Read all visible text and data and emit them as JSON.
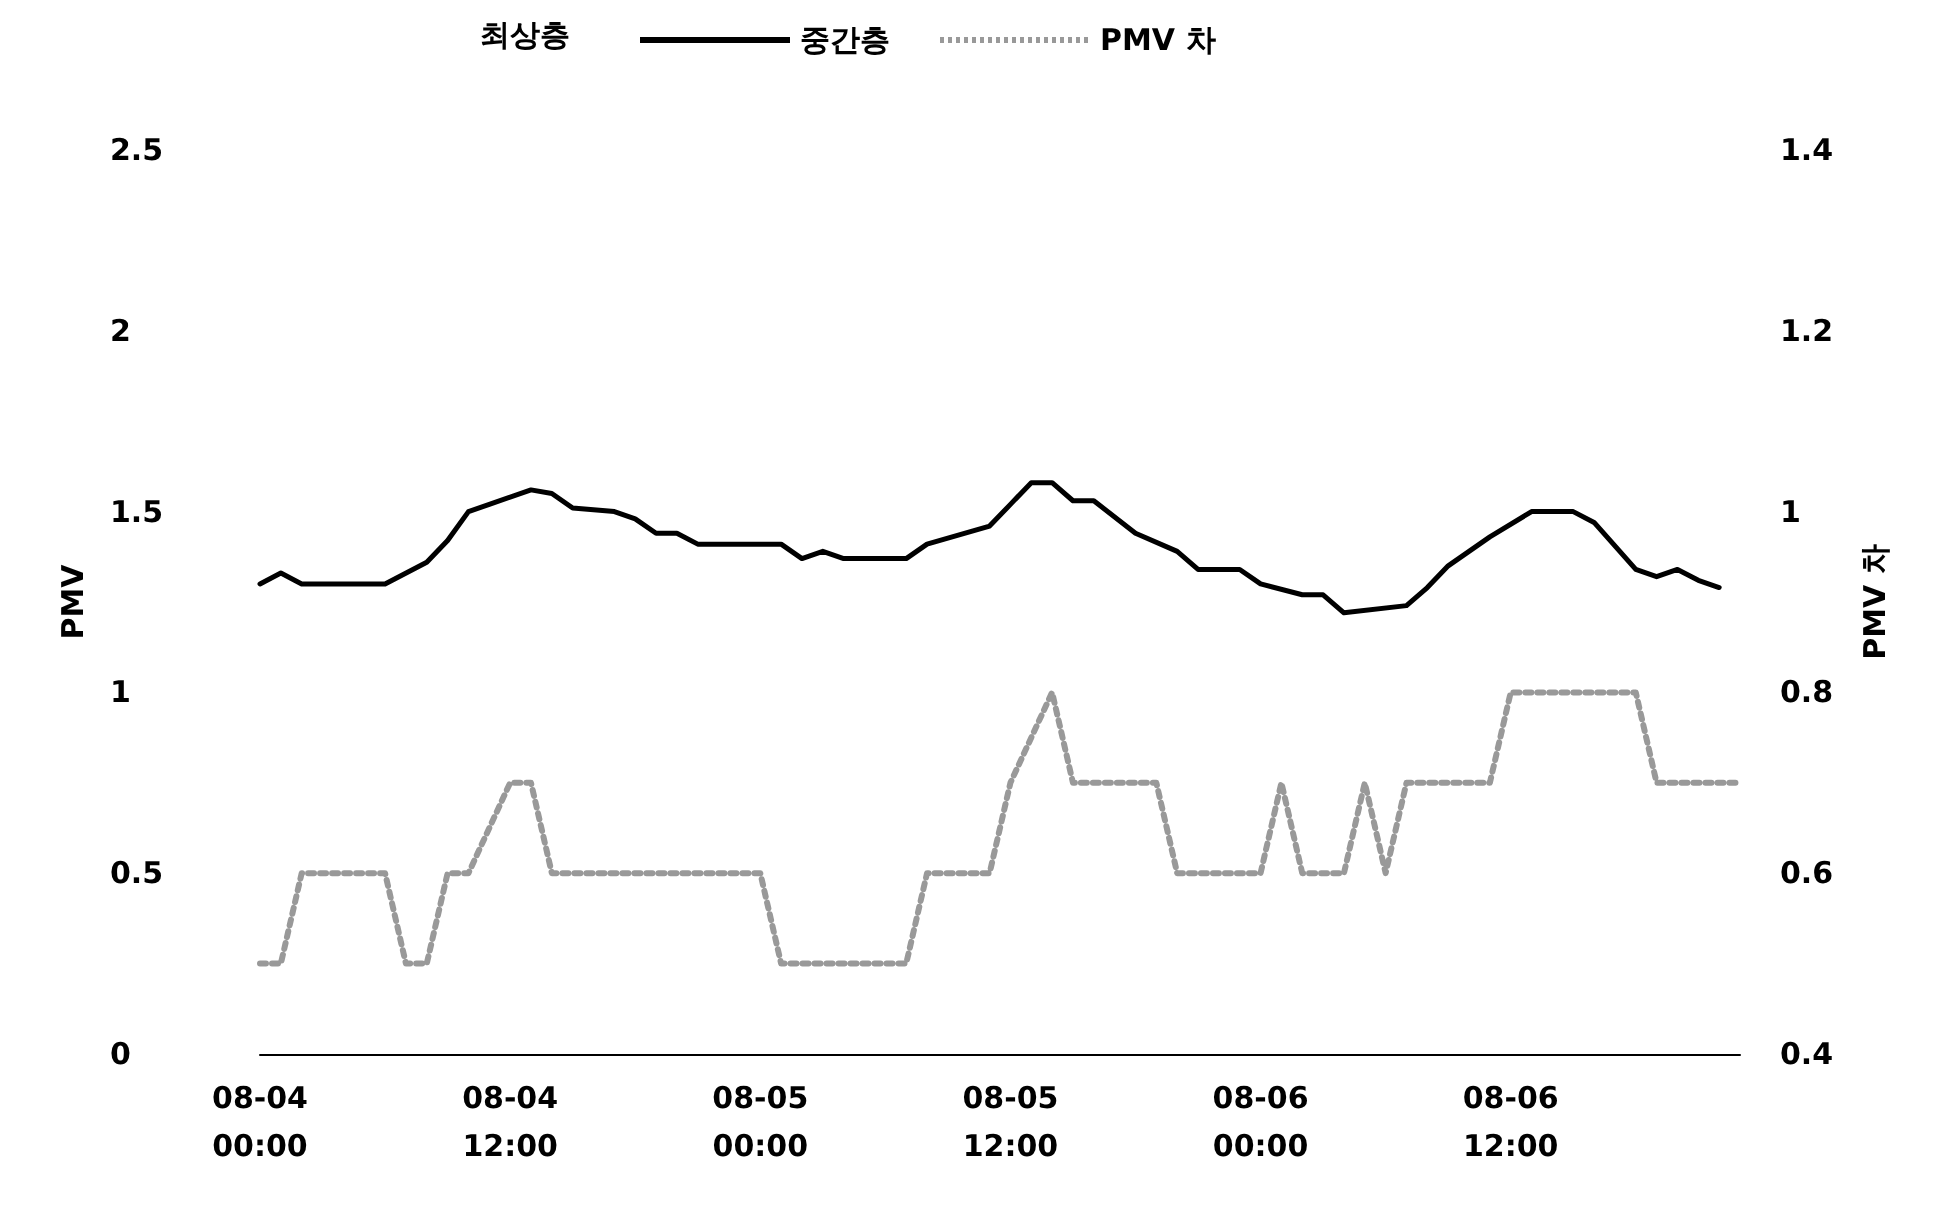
{
  "chart_data": {
    "type": "line",
    "legend_title": "최상층",
    "ylabel": "PMV",
    "y2label": "PMV 차",
    "legend": "top",
    "grid": false,
    "marker": "none",
    "xlim": [
      "--08-04T00:00",
      "--08-06T23:00"
    ],
    "xticks": [
      {
        "value": "--08-04T00:00",
        "label": "08-04\n00:00"
      },
      {
        "value": "--08-04T12:00",
        "label": "08-04\n12:00"
      },
      {
        "value": "--08-05T00:00",
        "label": "08-05\n00:00"
      },
      {
        "value": "--08-05T12:00",
        "label": "08-05\n12:00"
      },
      {
        "value": "--08-06T00:00",
        "label": "08-06\n00:00"
      },
      {
        "value": "--08-06T12:00",
        "label": "08-06\n12:00"
      }
    ],
    "ylim": [
      0,
      2.5
    ],
    "yticks": [
      0,
      0.5,
      1,
      1.5,
      2,
      2.5
    ],
    "y2lim": [
      0.4,
      1.4
    ],
    "y2ticks": [
      0.4,
      0.6,
      0.8,
      1,
      1.2,
      1.4
    ],
    "series": [
      {
        "name": "중간층",
        "color": "#000000",
        "line_style": "solid",
        "x": [
          "--08-04T00:00",
          "--08-04T01:00",
          "--08-04T02:00",
          "--08-04T06:00",
          "--08-04T08:00",
          "--08-04T09:00",
          "--08-04T10:00",
          "--08-04T11:00",
          "--08-04T13:00",
          "--08-04T14:00",
          "--08-04T15:00",
          "--08-04T17:00",
          "--08-04T18:00",
          "--08-04T19:00",
          "--08-04T20:00",
          "--08-04T21:00",
          "--08-05T01:00",
          "--08-05T02:00",
          "--08-05T03:00",
          "--08-05T04:00",
          "--08-05T07:00",
          "--08-05T08:00",
          "--08-05T11:00",
          "--08-05T12:00",
          "--08-05T13:00",
          "--08-05T14:00",
          "--08-05T15:00",
          "--08-05T16:00",
          "--08-05T18:00",
          "--08-05T20:00",
          "--08-05T21:00",
          "--08-05T23:00",
          "--08-06T00:00",
          "--08-06T02:00",
          "--08-06T03:00",
          "--08-06T04:00",
          "--08-06T07:00",
          "--08-06T08:00",
          "--08-06T09:00",
          "--08-06T11:00",
          "--08-06T13:00",
          "--08-06T15:00",
          "--08-06T16:00",
          "--08-06T18:00",
          "--08-06T19:00",
          "--08-06T20:00",
          "--08-06T21:00",
          "--08-06T22:00"
        ],
        "values": [
          1.3,
          1.33,
          1.3,
          1.3,
          1.36,
          1.42,
          1.5,
          1.52,
          1.56,
          1.55,
          1.51,
          1.5,
          1.48,
          1.44,
          1.44,
          1.41,
          1.41,
          1.37,
          1.39,
          1.37,
          1.37,
          1.41,
          1.46,
          1.52,
          1.58,
          1.58,
          1.53,
          1.53,
          1.44,
          1.39,
          1.34,
          1.34,
          1.3,
          1.27,
          1.27,
          1.22,
          1.24,
          1.29,
          1.35,
          1.43,
          1.5,
          1.5,
          1.47,
          1.34,
          1.32,
          1.34,
          1.31,
          1.29
        ]
      },
      {
        "name": "PMV 차",
        "color": "#999999",
        "line_style": "dotted",
        "axis": "y2",
        "x": [
          "--08-04T00:00",
          "--08-04T01:00",
          "--08-04T02:00",
          "--08-04T06:00",
          "--08-04T07:00",
          "--08-04T08:00",
          "--08-04T09:00",
          "--08-04T10:00",
          "--08-04T12:00",
          "--08-04T13:00",
          "--08-04T14:00",
          "--08-05T00:00",
          "--08-05T01:00",
          "--08-05T07:00",
          "--08-05T08:00",
          "--08-05T11:00",
          "--08-05T12:00",
          "--08-05T14:00",
          "--08-05T15:00",
          "--08-05T19:00",
          "--08-05T20:00",
          "--08-06T00:00",
          "--08-06T01:00",
          "--08-06T02:00",
          "--08-06T04:00",
          "--08-06T05:00",
          "--08-06T06:00",
          "--08-06T07:00",
          "--08-06T11:00",
          "--08-06T12:00",
          "--08-06T18:00",
          "--08-06T19:00",
          "--08-06T23:00"
        ],
        "values": [
          0.5,
          0.5,
          0.6,
          0.6,
          0.5,
          0.5,
          0.6,
          0.6,
          0.7,
          0.7,
          0.6,
          0.6,
          0.5,
          0.5,
          0.6,
          0.6,
          0.7,
          0.8,
          0.7,
          0.7,
          0.6,
          0.6,
          0.7,
          0.6,
          0.6,
          0.7,
          0.6,
          0.7,
          0.7,
          0.8,
          0.8,
          0.7,
          0.7
        ]
      }
    ]
  }
}
